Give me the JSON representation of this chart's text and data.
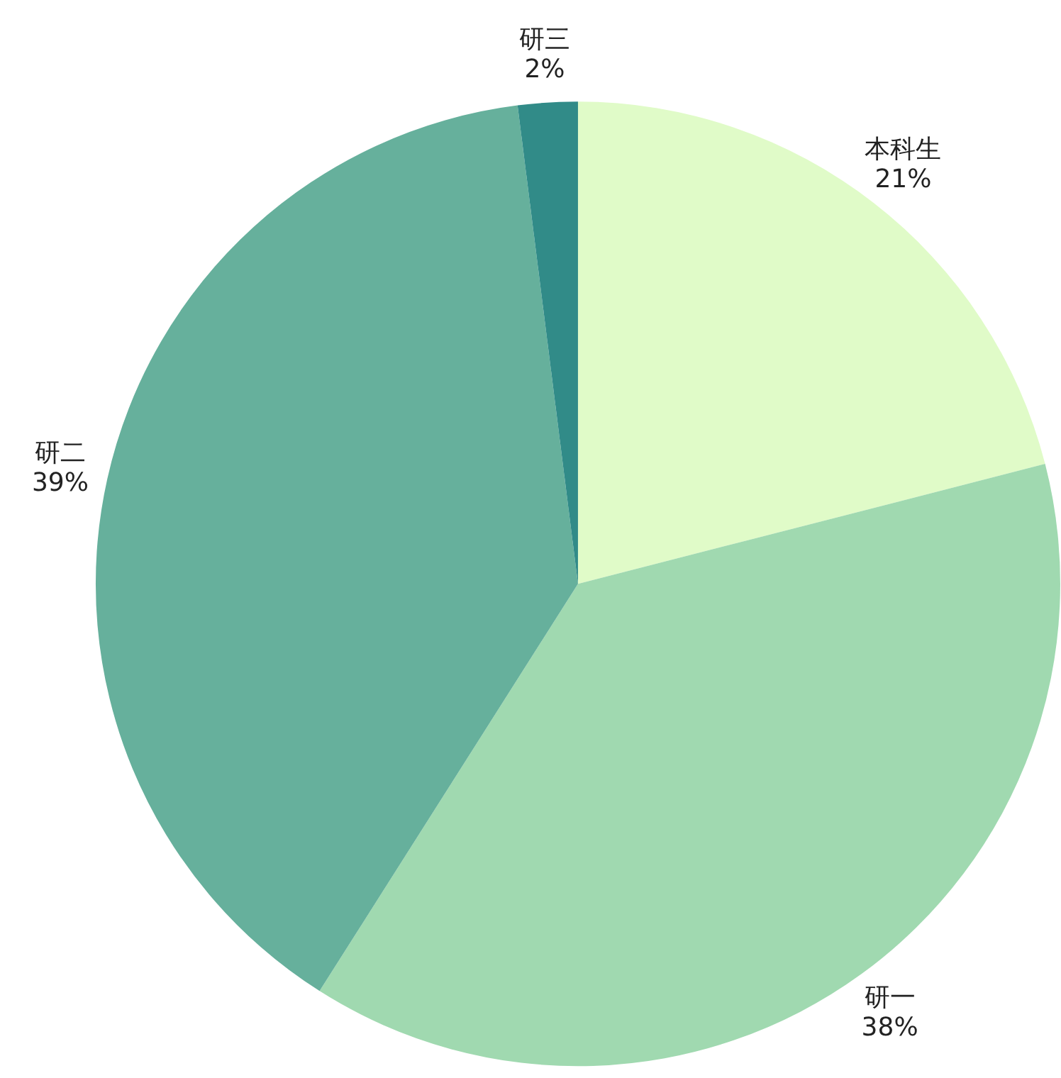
{
  "chart_data": {
    "type": "pie",
    "categories": [
      "本科生",
      "研一",
      "研二",
      "研三"
    ],
    "values": [
      21,
      38,
      39,
      2
    ],
    "value_labels": [
      "21%",
      "38%",
      "39%",
      "2%"
    ],
    "colors": [
      "#e0fbc8",
      "#a0d9b0",
      "#66b09c",
      "#318b88"
    ]
  }
}
